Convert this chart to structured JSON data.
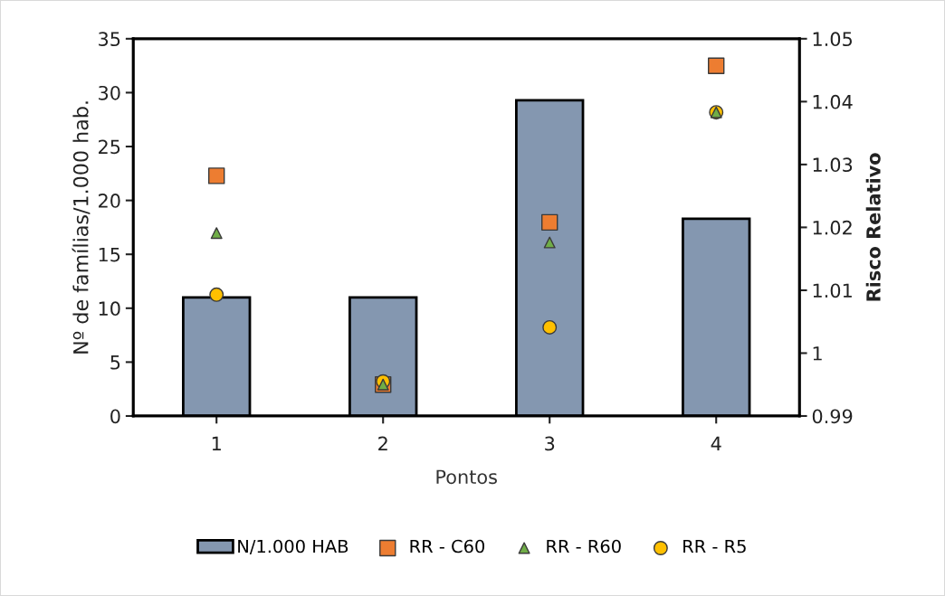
{
  "chart_data": {
    "type": "bar",
    "xlabel": "Pontos",
    "ylabel": "Nº de famílias/1.000 hab.",
    "y2label": "Risco Relativo",
    "categories": [
      "1",
      "2",
      "3",
      "4"
    ],
    "series": [
      {
        "name": "N/1.000 HAB",
        "color": "#8497b0",
        "values": [
          11,
          11,
          29.3,
          18.3
        ]
      },
      {
        "name": "RR - C60",
        "type": "scatter",
        "axis": "y2",
        "marker": "square",
        "color": "#ed7d31",
        "values": [
          1.0282,
          0.995,
          1.0208,
          1.0457
        ]
      },
      {
        "name": "RR - R60",
        "type": "scatter",
        "axis": "y2",
        "marker": "triangle",
        "color": "#70ad47",
        "values": [
          1.0191,
          0.995,
          1.0176,
          1.0383
        ]
      },
      {
        "name": "RR - R5",
        "type": "scatter",
        "axis": "y2",
        "marker": "circle",
        "color": "#ffc000",
        "values": [
          1.0093,
          0.9955,
          1.0041,
          1.0383
        ]
      }
    ],
    "ylim": [
      0,
      35
    ],
    "yticks": [
      0,
      5,
      10,
      15,
      20,
      25,
      30,
      35
    ],
    "y2lim": [
      0.99,
      1.05
    ],
    "y2ticks": [
      0.99,
      1,
      1.01,
      1.02,
      1.03,
      1.04,
      1.05
    ],
    "grid": false,
    "legend": "bottom"
  }
}
